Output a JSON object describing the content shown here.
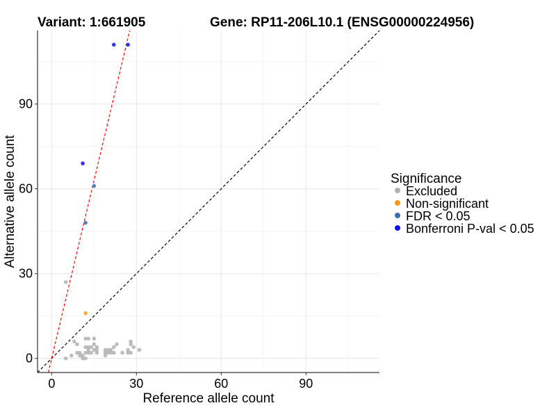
{
  "chart_data": {
    "type": "scatter",
    "title_left": "Variant: 1:661905",
    "title_right": "Gene: RP11-206L10.1 (ENSG00000224956)",
    "xlabel": "Reference allele count",
    "ylabel": "Alternative allele count",
    "xlim": [
      -5,
      116
    ],
    "ylim": [
      -5,
      116
    ],
    "xticks": [
      0,
      30,
      60,
      90
    ],
    "yticks": [
      0,
      30,
      60,
      90
    ],
    "grid": true,
    "legend": {
      "title": "Significance",
      "position": "right",
      "entries": [
        {
          "label": "Excluded",
          "color": "#b3b3b3"
        },
        {
          "label": "Non-significant",
          "color": "#f39c12"
        },
        {
          "label": "FDR < 0.05",
          "color": "#3a6fb0"
        },
        {
          "label": "Bonferroni P-val < 0.05",
          "color": "#1010f0"
        }
      ]
    },
    "series": [
      {
        "name": "Excluded",
        "points": [
          [
            5,
            27
          ],
          [
            5,
            0
          ],
          [
            7,
            1
          ],
          [
            8,
            6
          ],
          [
            9,
            5
          ],
          [
            9,
            2
          ],
          [
            10,
            1
          ],
          [
            10,
            2
          ],
          [
            11,
            1
          ],
          [
            11,
            0
          ],
          [
            12,
            0
          ],
          [
            12,
            2
          ],
          [
            12,
            4
          ],
          [
            12,
            7
          ],
          [
            13,
            2
          ],
          [
            13,
            3
          ],
          [
            13,
            4
          ],
          [
            13,
            7
          ],
          [
            14,
            2
          ],
          [
            14,
            4
          ],
          [
            15,
            3
          ],
          [
            15,
            5
          ],
          [
            15,
            7
          ],
          [
            16,
            2
          ],
          [
            16,
            3
          ],
          [
            16,
            4
          ],
          [
            19,
            1
          ],
          [
            19,
            2
          ],
          [
            19,
            3
          ],
          [
            20,
            3
          ],
          [
            20,
            2
          ],
          [
            21,
            2
          ],
          [
            21,
            3
          ],
          [
            22,
            4
          ],
          [
            22,
            2
          ],
          [
            23,
            5
          ],
          [
            25,
            2
          ],
          [
            27,
            3
          ],
          [
            27,
            2
          ],
          [
            28,
            6
          ],
          [
            28,
            5
          ],
          [
            28,
            2
          ],
          [
            29,
            4
          ],
          [
            31,
            3
          ]
        ]
      },
      {
        "name": "Non-significant",
        "points": [
          [
            12,
            16
          ]
        ]
      },
      {
        "name": "FDR < 0.05",
        "points": [
          [
            15,
            61
          ],
          [
            12,
            48
          ]
        ]
      },
      {
        "name": "Bonferroni P-val < 0.05",
        "points": [
          [
            11,
            69
          ],
          [
            22,
            111
          ],
          [
            27,
            111
          ]
        ]
      }
    ],
    "reference_lines": [
      {
        "kind": "identity",
        "slope": 1,
        "intercept": 0,
        "color": "#000000",
        "dash": "dashed"
      },
      {
        "kind": "fit",
        "slope": 4.2,
        "intercept": 0,
        "color": "#ff0000",
        "dash": "dashed"
      }
    ]
  }
}
